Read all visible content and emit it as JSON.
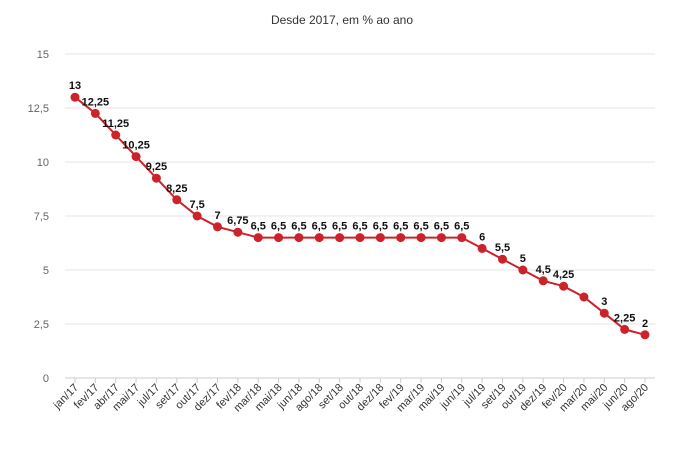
{
  "chart_data": {
    "type": "line",
    "title": "",
    "subtitle": "Desde 2017, em % ao ano",
    "xlabel": "",
    "ylabel": "",
    "ylim": [
      0,
      15
    ],
    "yticks": [
      "0",
      "2,5",
      "5",
      "7,5",
      "10",
      "12,5",
      "15"
    ],
    "grid": true,
    "categories": [
      "jan/17",
      "fev/17",
      "abr/17",
      "mai/17",
      "jul/17",
      "set/17",
      "out/17",
      "dez/17",
      "fev/18",
      "mar/18",
      "mai/18",
      "jun/18",
      "ago/18",
      "set/18",
      "out/18",
      "dez/18",
      "fev/19",
      "mar/19",
      "mai/19",
      "jun/19",
      "jul/19",
      "set/19",
      "out/19",
      "dez/19",
      "fev/20",
      "mar/20",
      "mai/20",
      "jun/20",
      "ago/20"
    ],
    "series": [
      {
        "values": [
          13,
          12.25,
          11.25,
          10.25,
          9.25,
          8.25,
          7.5,
          7,
          6.75,
          6.5,
          6.5,
          6.5,
          6.5,
          6.5,
          6.5,
          6.5,
          6.5,
          6.5,
          6.5,
          6.5,
          6,
          5.5,
          5,
          4.5,
          4.25,
          3.75,
          3,
          2.25,
          2
        ],
        "labels": [
          "13",
          "12,25",
          "11,25",
          "10,25",
          "9,25",
          "8,25",
          "7,5",
          "7",
          "6,75",
          "6,5",
          "6,5",
          "6,5",
          "6,5",
          "6,5",
          "6,5",
          "6,5",
          "6,5",
          "6,5",
          "6,5",
          "6,5",
          "6",
          "5,5",
          "5",
          "4,5",
          "4,25",
          "",
          "3",
          "2,25",
          "2"
        ],
        "color": "#cc2229"
      }
    ]
  }
}
